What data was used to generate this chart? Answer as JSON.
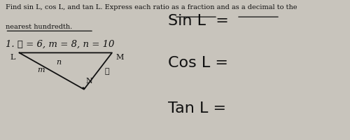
{
  "bg_color": "#c8c4bc",
  "paper_color": "#e8e5de",
  "title_line1": "Find sin L, cos L, and tan L. Express each ratio as a fraction and as a decimal to the",
  "title_line2": "nearest hundredth.",
  "problem": "1. ℓ = 6, m = 8, n = 10",
  "sin_label": "Sin L  =",
  "cos_label": "Cos L =",
  "tan_label": "Tan L =",
  "triangle": {
    "L": [
      0.055,
      0.62
    ],
    "M": [
      0.32,
      0.62
    ],
    "N": [
      0.24,
      0.36
    ],
    "label_L": "L",
    "label_M": "M",
    "label_N": "N",
    "label_m": "m",
    "label_ell": "ℓ",
    "label_n": "n"
  },
  "font_color": "#111111",
  "title_fontsize": 7.0,
  "problem_fontsize": 9.5,
  "trig_fontsize": 16
}
